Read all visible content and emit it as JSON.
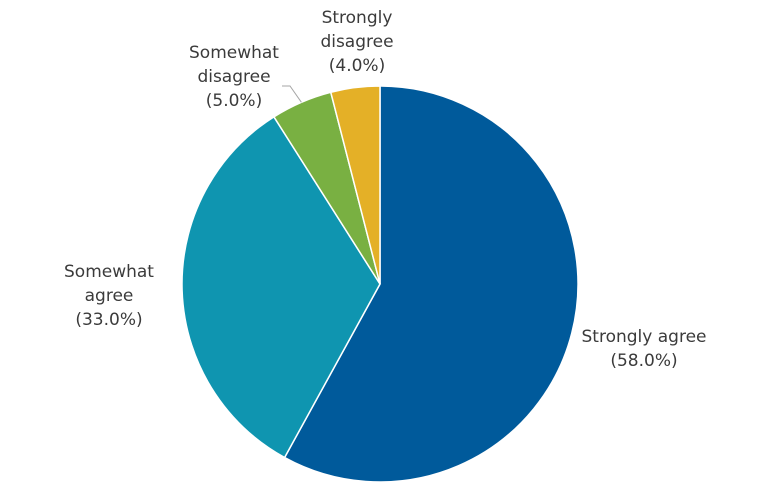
{
  "chart_data": {
    "type": "pie",
    "title": "",
    "start_angle_deg": 0,
    "direction": "clockwise",
    "slices": [
      {
        "name": "Strongly agree",
        "value": 58.0,
        "label_lines": [
          "Strongly agree",
          "(58.0%)"
        ],
        "color": "#005a9b"
      },
      {
        "name": "Somewhat agree",
        "value": 33.0,
        "label_lines": [
          "Somewhat",
          "agree",
          "(33.0%)"
        ],
        "color": "#0f95b0"
      },
      {
        "name": "Somewhat disagree",
        "value": 5.0,
        "label_lines": [
          "Somewhat",
          "disagree",
          "(5.0%)"
        ],
        "color": "#79b042"
      },
      {
        "name": "Strongly disagree",
        "value": 4.0,
        "label_lines": [
          "Strongly",
          "disagree",
          "(4.0%)"
        ],
        "color": "#e4b027"
      }
    ]
  }
}
